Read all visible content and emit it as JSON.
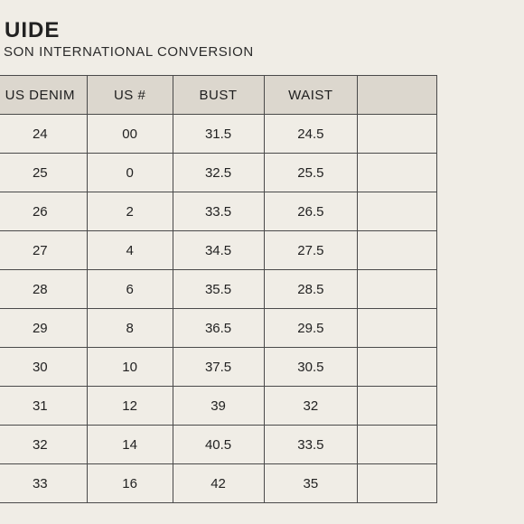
{
  "title": "UIDE",
  "subtitle": "SON INTERNATIONAL CONVERSION",
  "table": {
    "headers": [
      "",
      "US DENIM",
      "US #",
      "BUST",
      "WAIST",
      ""
    ],
    "rows": [
      [
        "",
        "24",
        "00",
        "31.5",
        "24.5",
        ""
      ],
      [
        "",
        "25",
        "0",
        "32.5",
        "25.5",
        ""
      ],
      [
        "",
        "26",
        "2",
        "33.5",
        "26.5",
        ""
      ],
      [
        "",
        "27",
        "4",
        "34.5",
        "27.5",
        ""
      ],
      [
        "",
        "28",
        "6",
        "35.5",
        "28.5",
        ""
      ],
      [
        "",
        "29",
        "8",
        "36.5",
        "29.5",
        ""
      ],
      [
        "",
        "30",
        "10",
        "37.5",
        "30.5",
        ""
      ],
      [
        "",
        "31",
        "12",
        "39",
        "32",
        ""
      ],
      [
        "",
        "32",
        "14",
        "40.5",
        "33.5",
        ""
      ],
      [
        "",
        "33",
        "16",
        "42",
        "35",
        ""
      ]
    ]
  },
  "colors": {
    "background": "#f0ede6",
    "header_fill": "#dcd7ce",
    "grid_line": "#4a4a4a",
    "text": "#222222"
  }
}
